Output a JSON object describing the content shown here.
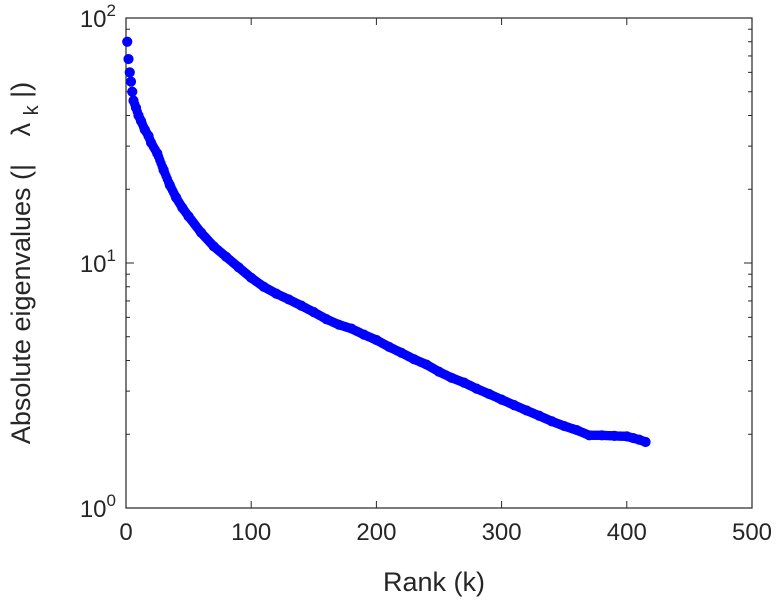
{
  "chart_data": {
    "type": "scatter",
    "xlabel": "Rank (k)",
    "ylabel": "Absolute eigenvalues (|    λ_k |)",
    "ylabel_parts": {
      "prefix": "Absolute eigenvalues (|",
      "symbol": "λ",
      "subscript": "k",
      "suffix": "|)"
    },
    "xlim": [
      0,
      500
    ],
    "ylim": [
      1,
      100
    ],
    "yscale": "log",
    "x_ticks": [
      "0",
      "100",
      "200",
      "300",
      "400",
      "500"
    ],
    "y_ticks": [
      {
        "base": "10",
        "exp": "0"
      },
      {
        "base": "10",
        "exp": "1"
      },
      {
        "base": "10",
        "exp": "2"
      }
    ],
    "grid": false,
    "legend": "none",
    "color": "#0000ff",
    "series": [
      {
        "x": [
          1,
          2,
          3,
          4,
          5,
          6,
          8,
          10,
          12,
          15,
          18,
          20,
          25,
          30,
          35,
          40,
          45,
          50,
          60,
          70,
          80,
          90,
          100,
          110,
          120,
          130,
          140,
          150,
          160,
          170,
          180,
          190,
          200,
          210,
          220,
          230,
          240,
          250,
          260,
          270,
          280,
          290,
          300,
          310,
          320,
          330,
          340,
          350,
          360,
          370,
          380,
          390,
          400,
          405,
          410,
          415
        ],
        "y": [
          80,
          68,
          60,
          55,
          50,
          46,
          43,
          40,
          38,
          35,
          33,
          31,
          28,
          24,
          20.8,
          18.5,
          16.8,
          15.5,
          13.3,
          11.7,
          10.6,
          9.6,
          8.7,
          8.0,
          7.5,
          7.1,
          6.7,
          6.3,
          5.9,
          5.6,
          5.4,
          5.1,
          4.85,
          4.55,
          4.3,
          4.05,
          3.85,
          3.6,
          3.4,
          3.25,
          3.07,
          2.92,
          2.77,
          2.63,
          2.5,
          2.38,
          2.26,
          2.16,
          2.08,
          1.98,
          1.98,
          1.97,
          1.96,
          1.93,
          1.9,
          1.86
        ]
      }
    ]
  }
}
